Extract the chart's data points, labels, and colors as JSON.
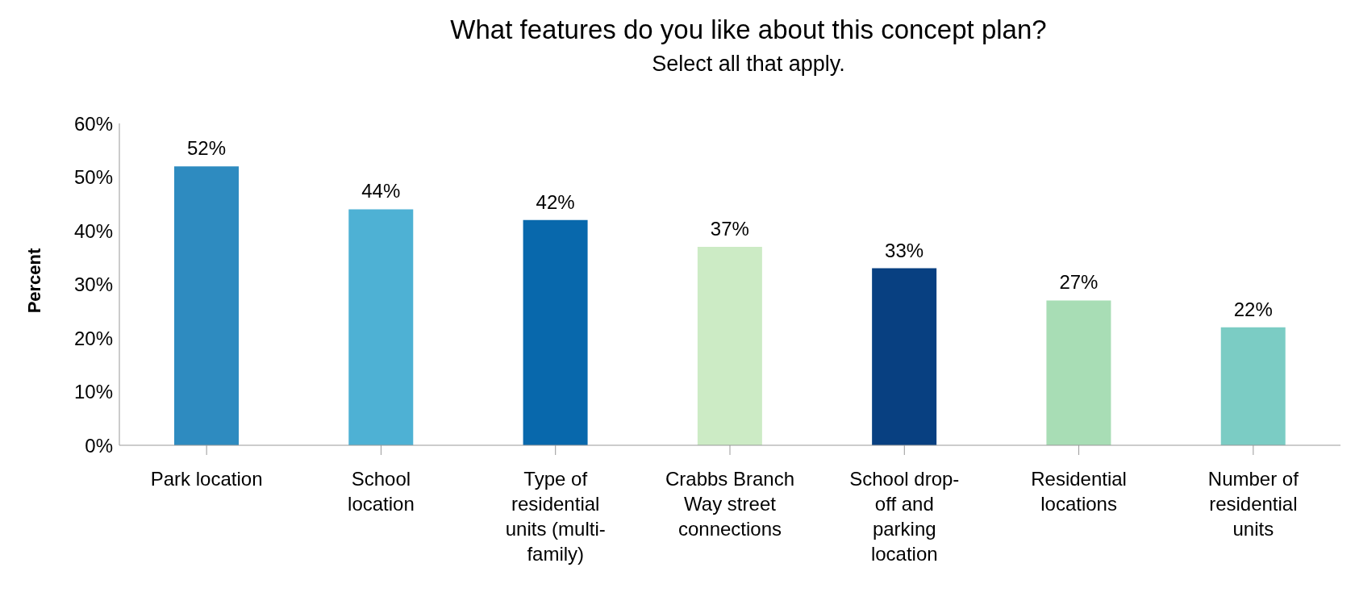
{
  "chart_data": {
    "type": "bar",
    "title": "What features do you like about this concept plan?",
    "subtitle": "Select all that apply.",
    "ylabel": "Percent",
    "categories": [
      "Park location",
      "School location",
      "Type of residential units (multi-family)",
      "Crabbs Branch Way street connections",
      "School drop-off and parking location",
      "Residential locations",
      "Number of residential units"
    ],
    "values": [
      52,
      44,
      42,
      37,
      33,
      27,
      22
    ],
    "colors": [
      "#2e8bc0",
      "#4eb1d4",
      "#0868ac",
      "#ccebc5",
      "#084081",
      "#a8ddb5",
      "#7bccc4"
    ],
    "value_labels": [
      "52%",
      "44%",
      "42%",
      "37%",
      "33%",
      "27%",
      "22%"
    ],
    "ylim": [
      0,
      60
    ],
    "yticks": [
      {
        "value": 0,
        "label": "0%"
      },
      {
        "value": 10,
        "label": "10%"
      },
      {
        "value": 20,
        "label": "20%"
      },
      {
        "value": 30,
        "label": "30%"
      },
      {
        "value": 40,
        "label": "40%"
      },
      {
        "value": 50,
        "label": "50%"
      },
      {
        "value": 60,
        "label": "60%"
      }
    ],
    "grid": false
  }
}
